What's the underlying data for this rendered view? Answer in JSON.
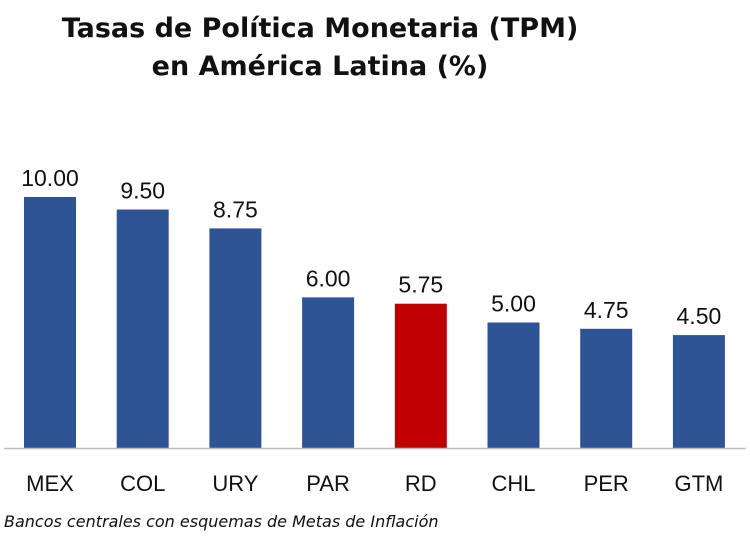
{
  "chart_data": {
    "type": "bar",
    "title": [
      "Tasas de Política Monetaria (TPM)",
      "en América Latina (%)"
    ],
    "categories": [
      "MEX",
      "COL",
      "URY",
      "PAR",
      "RD",
      "CHL",
      "PER",
      "GTM"
    ],
    "values": [
      10.0,
      9.5,
      8.75,
      6.0,
      5.75,
      5.0,
      4.75,
      4.5
    ],
    "value_labels": [
      "10.00",
      "9.50",
      "8.75",
      "6.00",
      "5.75",
      "5.00",
      "4.75",
      "4.50"
    ],
    "highlight_category": "RD",
    "ylim": [
      0,
      10
    ],
    "xlabel": "",
    "ylabel": "",
    "grid": false,
    "colors": {
      "default": "#2F5496",
      "highlight": "#C00000",
      "axis": "#BFBFBF"
    }
  },
  "footnote": "Bancos centrales con esquemas de Metas de Inflación"
}
